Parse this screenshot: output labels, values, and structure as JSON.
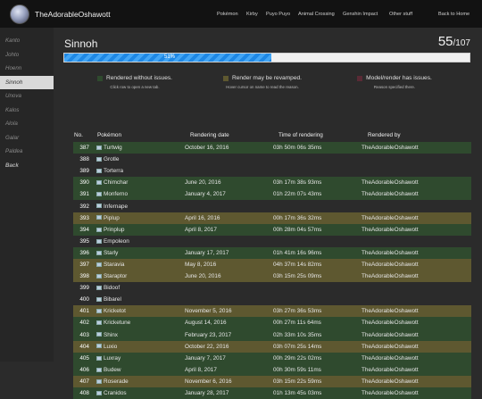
{
  "header": {
    "site_title": "TheAdorableOshawott",
    "nav": [
      "Pokémon",
      "Kirby",
      "Puyo Puyo",
      "Animal Crossing",
      "Genshin Impact",
      "Other stuff",
      "Back to Home"
    ]
  },
  "sidebar": {
    "items": [
      "Kanto",
      "Johto",
      "Hoenn",
      "Sinnoh",
      "Unova",
      "Kalos",
      "Alola",
      "Galar",
      "Paldea",
      "Back"
    ],
    "active": "Sinnoh"
  },
  "main": {
    "title": "Sinnoh",
    "count": "55",
    "total": "/107",
    "progress_label": "51%",
    "progress_fraction": 0.51
  },
  "legend": [
    {
      "label": "Rendered without issues.",
      "sub": "Click row to open a new tab.",
      "color": "#2f4a2e"
    },
    {
      "label": "Render may be revamped.",
      "sub": "Hover cursor on name to read the reason.",
      "color": "#5e5830"
    },
    {
      "label": "Model/render has issues.",
      "sub": "Reason specified there.",
      "color": "#5a2a35"
    }
  ],
  "table": {
    "headers": [
      "No.",
      "Pokémon",
      "Rendering date",
      "Time of rendering",
      "Rendered by"
    ],
    "rows": [
      {
        "no": "387",
        "name": "Turtwig",
        "date": "October 16, 2016",
        "time": "03h 50m 06s 35ms",
        "by": "TheAdorableOshawott",
        "status": "g"
      },
      {
        "no": "388",
        "name": "Grotle",
        "date": "",
        "time": "",
        "by": "",
        "status": "n"
      },
      {
        "no": "389",
        "name": "Torterra",
        "date": "",
        "time": "",
        "by": "",
        "status": "n"
      },
      {
        "no": "390",
        "name": "Chimchar",
        "date": "June 20, 2016",
        "time": "03h 17m 38s 93ms",
        "by": "TheAdorableOshawott",
        "status": "g"
      },
      {
        "no": "391",
        "name": "Monferno",
        "date": "January 4, 2017",
        "time": "01h 22m 07s 43ms",
        "by": "TheAdorableOshawott",
        "status": "g"
      },
      {
        "no": "392",
        "name": "Infernape",
        "date": "",
        "time": "",
        "by": "",
        "status": "n"
      },
      {
        "no": "393",
        "name": "Piplup",
        "date": "April 16, 2016",
        "time": "00h 17m 36s 32ms",
        "by": "TheAdorableOshawott",
        "status": "y"
      },
      {
        "no": "394",
        "name": "Prinplup",
        "date": "April 8, 2017",
        "time": "00h 28m 04s 57ms",
        "by": "TheAdorableOshawott",
        "status": "g"
      },
      {
        "no": "395",
        "name": "Empoleon",
        "date": "",
        "time": "",
        "by": "",
        "status": "n"
      },
      {
        "no": "396",
        "name": "Starly",
        "date": "January 17, 2017",
        "time": "01h 41m 16s 96ms",
        "by": "TheAdorableOshawott",
        "status": "g"
      },
      {
        "no": "397",
        "name": "Staravia",
        "date": "May 8, 2016",
        "time": "04h 37m 14s 82ms",
        "by": "TheAdorableOshawott",
        "status": "y"
      },
      {
        "no": "398",
        "name": "Staraptor",
        "date": "June 20, 2016",
        "time": "03h 15m 25s 09ms",
        "by": "TheAdorableOshawott",
        "status": "y"
      },
      {
        "no": "399",
        "name": "Bidoof",
        "date": "",
        "time": "",
        "by": "",
        "status": "n"
      },
      {
        "no": "400",
        "name": "Bibarel",
        "date": "",
        "time": "",
        "by": "",
        "status": "n"
      },
      {
        "no": "401",
        "name": "Kricketot",
        "date": "November 5, 2016",
        "time": "03h 27m 36s 53ms",
        "by": "TheAdorableOshawott",
        "status": "y"
      },
      {
        "no": "402",
        "name": "Kricketune",
        "date": "August 14, 2016",
        "time": "00h 27m 11s 64ms",
        "by": "TheAdorableOshawott",
        "status": "g"
      },
      {
        "no": "403",
        "name": "Shinx",
        "date": "February 23, 2017",
        "time": "02h 33m 10s 35ms",
        "by": "TheAdorableOshawott",
        "status": "g"
      },
      {
        "no": "404",
        "name": "Luxio",
        "date": "October 22, 2016",
        "time": "03h 07m 25s 14ms",
        "by": "TheAdorableOshawott",
        "status": "y"
      },
      {
        "no": "405",
        "name": "Luxray",
        "date": "January 7, 2017",
        "time": "00h 29m 22s 02ms",
        "by": "TheAdorableOshawott",
        "status": "g"
      },
      {
        "no": "406",
        "name": "Budew",
        "date": "April 8, 2017",
        "time": "00h 30m 59s 11ms",
        "by": "TheAdorableOshawott",
        "status": "g"
      },
      {
        "no": "407",
        "name": "Roserade",
        "date": "November 6, 2016",
        "time": "03h 15m 22s 59ms",
        "by": "TheAdorableOshawott",
        "status": "y"
      },
      {
        "no": "408",
        "name": "Cranidos",
        "date": "January 28, 2017",
        "time": "01h 13m 45s 03ms",
        "by": "TheAdorableOshawott",
        "status": "g"
      }
    ]
  }
}
